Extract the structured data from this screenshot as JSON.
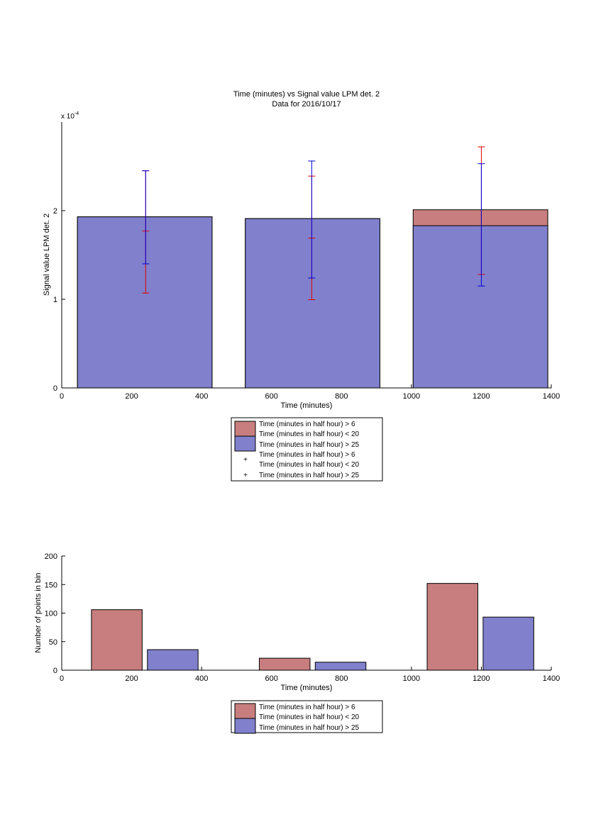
{
  "chart_data": [
    {
      "type": "bar",
      "title": "Time (minutes) vs Signal value LPM det. 2",
      "subtitle": "Data for 2016/10/17",
      "xlabel": "Time (minutes)",
      "ylabel": "Signal value LPM det. 2",
      "exponent_label": "x 10",
      "exponent_power": "-4",
      "xlim": [
        0,
        1400
      ],
      "ylim": [
        0,
        0.0003
      ],
      "xticks": [
        "0",
        "200",
        "400",
        "600",
        "800",
        "1000",
        "1200",
        "1400"
      ],
      "yticks": [
        "0",
        "1",
        "2"
      ],
      "bins": [
        {
          "x_start": 45,
          "x_end": 430,
          "center": 240
        },
        {
          "x_start": 525,
          "x_end": 910,
          "center": 715
        },
        {
          "x_start": 1005,
          "x_end": 1390,
          "center": 1200
        }
      ],
      "series": [
        {
          "name": "Time (minutes in half hour) > 6\nTime (minutes in half hour) < 20",
          "color": "#c87e7e",
          "values": [
            0.000193,
            0.000191,
            0.000201
          ],
          "error_low": [
            0.000107,
            9.95e-05,
            0.000128
          ],
          "error_high": [
            0.000245,
            0.000239,
            0.000272
          ],
          "error_mid": [
            0.000177,
            0.000169,
            null
          ]
        },
        {
          "name": "Time (minutes in half hour) > 25",
          "color": "#8080cc",
          "values": [
            0.000193,
            0.000191,
            0.000183
          ],
          "error_low": [
            0.00014,
            0.000124,
            0.000115
          ],
          "error_high": [
            0.000245,
            0.000256,
            0.000253
          ]
        }
      ],
      "legend": [
        "Time (minutes in half hour) > 6",
        "Time (minutes in half hour) < 20",
        "Time (minutes in half hour) > 25",
        "Time (minutes in half hour) > 6",
        "Time (minutes in half hour) < 20",
        "Time (minutes in half hour) > 25"
      ],
      "legend_placement": "below"
    },
    {
      "type": "bar",
      "xlabel": "Time (minutes)",
      "ylabel": "Number of points in bin",
      "xlim": [
        0,
        1400
      ],
      "ylim": [
        0,
        200
      ],
      "xticks": [
        "0",
        "200",
        "400",
        "600",
        "800",
        "1000",
        "1200",
        "1400"
      ],
      "yticks": [
        "0",
        "50",
        "100",
        "150",
        "200"
      ],
      "series": [
        {
          "name": "Time (minutes in half hour) > 6\nTime (minutes in half hour) < 20",
          "color": "#c87e7e",
          "bars": [
            {
              "x_start": 85,
              "x_end": 230,
              "value": 106
            },
            {
              "x_start": 565,
              "x_end": 710,
              "value": 21
            },
            {
              "x_start": 1045,
              "x_end": 1190,
              "value": 152
            }
          ]
        },
        {
          "name": "Time (minutes in half hour) > 25",
          "color": "#8080cc",
          "bars": [
            {
              "x_start": 245,
              "x_end": 390,
              "value": 36
            },
            {
              "x_start": 725,
              "x_end": 870,
              "value": 14
            },
            {
              "x_start": 1205,
              "x_end": 1350,
              "value": 93
            }
          ]
        }
      ],
      "legend": [
        "Time (minutes in half hour) > 6",
        "Time (minutes in half hour) < 20",
        "Time (minutes in half hour) > 25"
      ],
      "legend_placement": "below"
    }
  ]
}
